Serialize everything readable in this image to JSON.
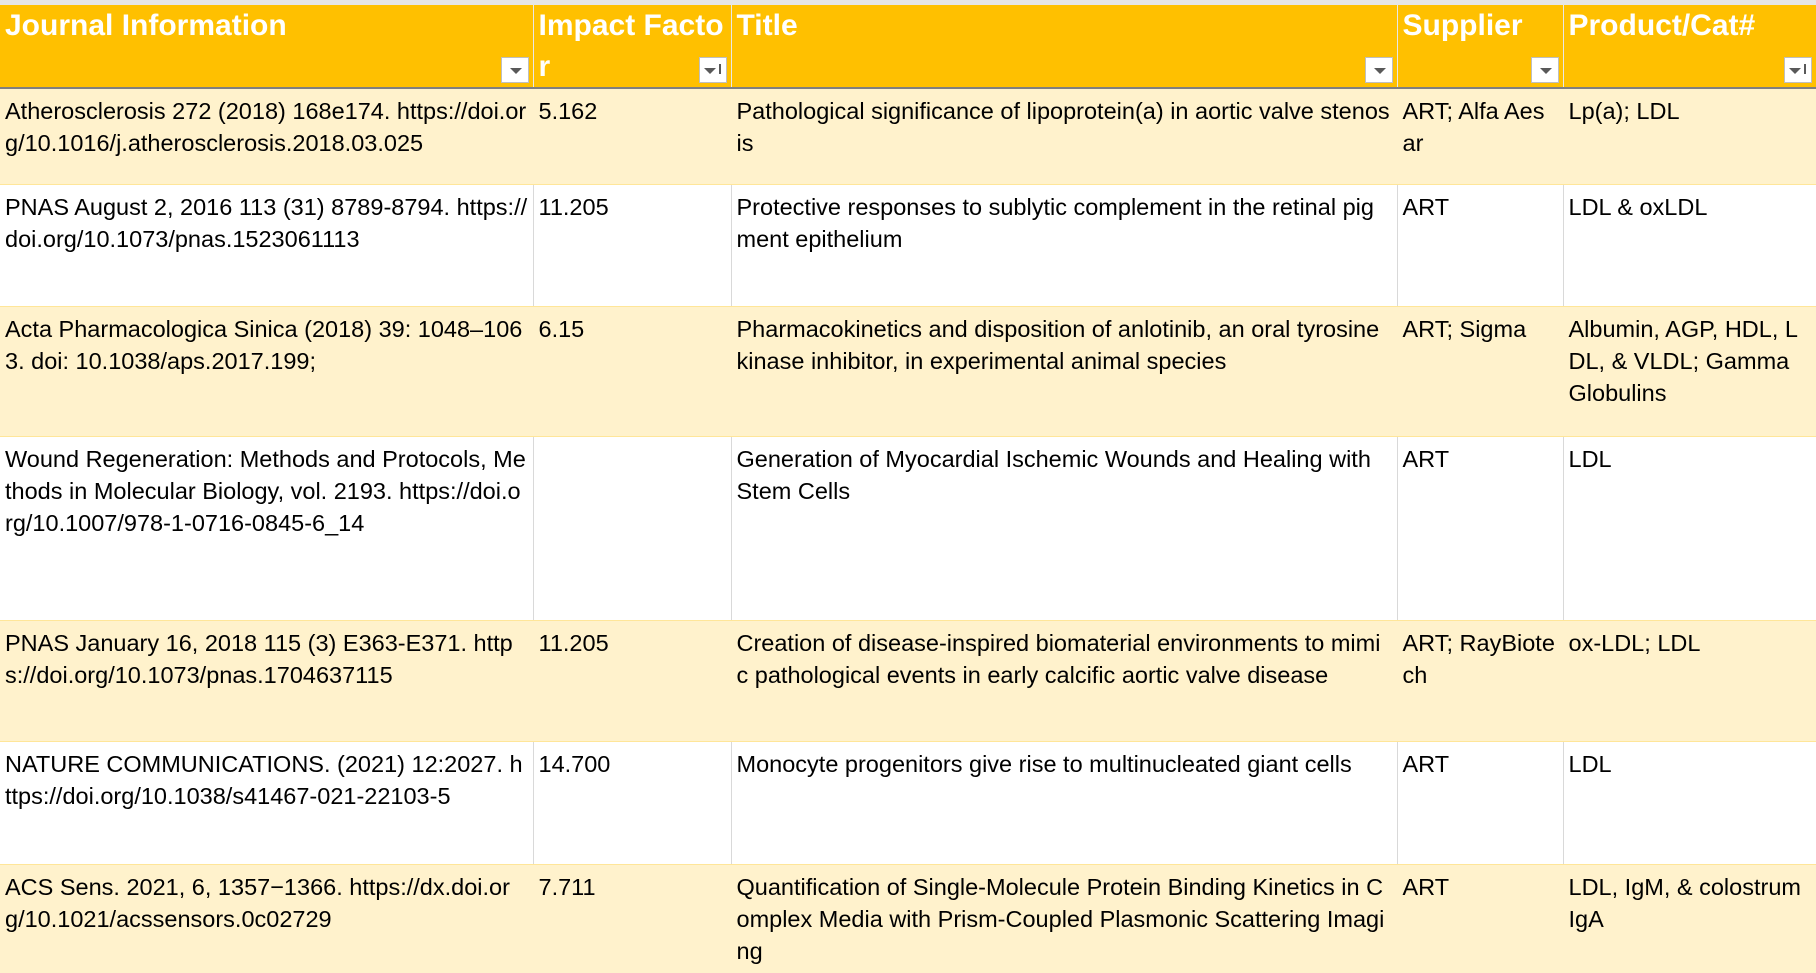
{
  "table": {
    "columns": [
      "Journal Information",
      "Impact Factor",
      "Title",
      "Supplier",
      "Product/Cat#"
    ],
    "rows": [
      [
        "Atherosclerosis 272 (2018) 168e174. https://doi.org/10.1016/j.atherosclerosis.2018.03.025",
        "5.162",
        "Pathological significance of lipoprotein(a) in aortic valve stenosis",
        "ART;  Alfa Aesar",
        "Lp(a); LDL"
      ],
      [
        "PNAS August 2, 2016 113 (31) 8789-8794. https://doi.org/10.1073/pnas.1523061113",
        "11.205",
        "Protective responses to sublytic complement in the retinal pigment epithelium",
        "ART",
        "LDL & oxLDL"
      ],
      [
        "Acta Pharmacologica Sinica (2018) 39: 1048–1063.  doi: 10.1038/aps.2017.199;",
        "6.15",
        "Pharmacokinetics and disposition of anlotinib, an oral tyrosine kinase inhibitor, in experimental animal species",
        "ART; Sigma",
        "Albumin, AGP, HDL, LDL, & VLDL; Gamma Globulins"
      ],
      [
        "Wound Regeneration: Methods and Protocols, Methods in Molecular Biology, vol. 2193.  https://doi.org/10.1007/978-1-0716-0845-6_14",
        null,
        "Generation of Myocardial Ischemic Wounds and Healing with Stem Cells",
        "ART",
        "LDL"
      ],
      [
        "PNAS January 16, 2018 115 (3) E363-E371. https://doi.org/10.1073/pnas.1704637115",
        "11.205",
        "Creation of disease-inspired biomaterial environments to mimic pathological events in early calcific aortic valve disease",
        "ART; RayBiotech",
        "ox-LDL;  LDL"
      ],
      [
        "NATURE COMMUNICATIONS.  (2021) 12:2027.  https://doi.org/10.1038/s41467-021-22103-5",
        "14.700",
        "Monocyte progenitors give rise to multinucleated giant cells",
        "ART",
        "LDL"
      ],
      [
        "ACS Sens. 2021, 6, 1357−1366. https://dx.doi.org/10.1021/acssensors.0c02729",
        "7.711",
        "Quantification of Single-Molecule Protein Binding Kinetics in Complex Media with Prism-Coupled Plasmonic Scattering Imaging",
        "ART",
        "LDL, IgM, & colostrum IgA"
      ]
    ]
  }
}
